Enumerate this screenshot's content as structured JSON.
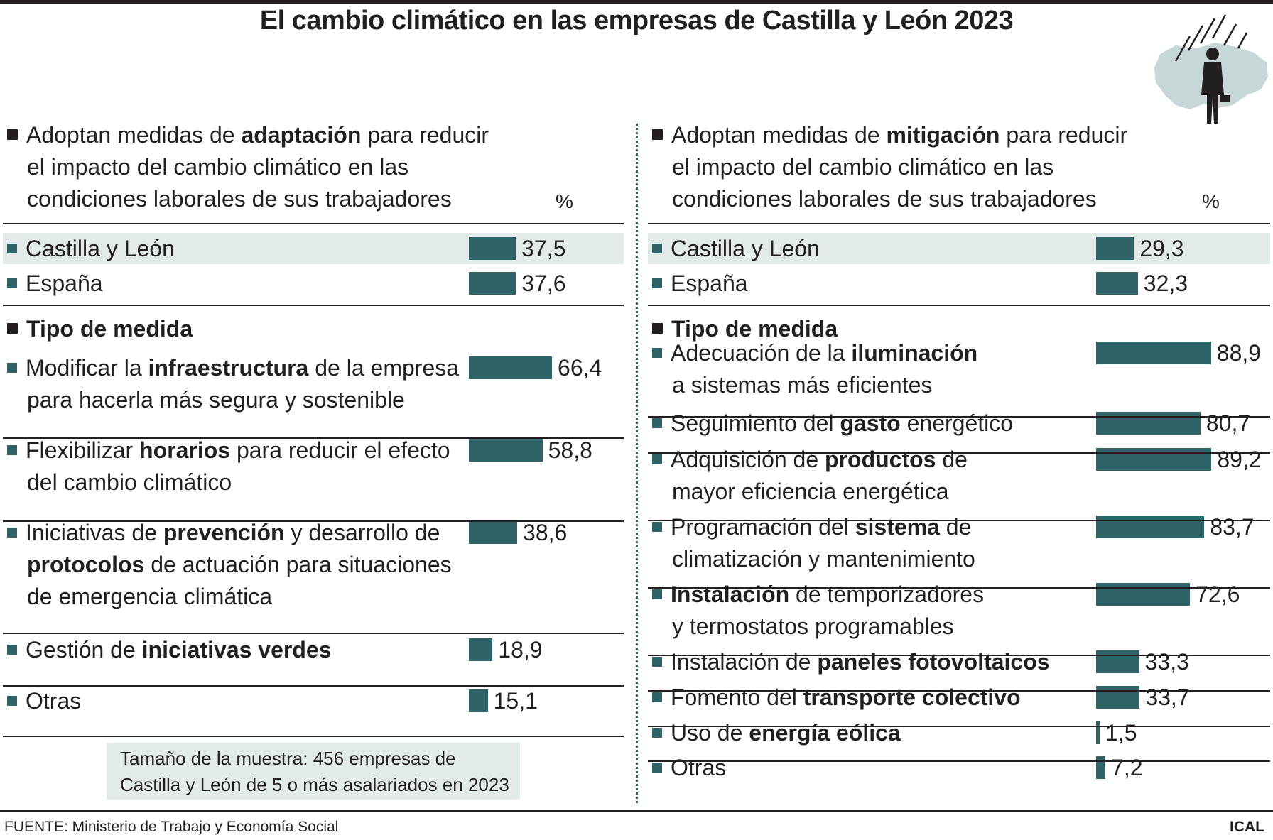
{
  "title": "El cambio climático en las empresas de Castilla y León 2023",
  "colors": {
    "bar": "#2e6468",
    "highlight": "#e2eaea",
    "text": "#231f20"
  },
  "left": {
    "heading_lines": [
      [
        {
          "t": "Adoptan medidas de "
        },
        {
          "t": "adaptación",
          "b": true
        },
        {
          "t": " para reducir"
        }
      ],
      [
        {
          "t": "el impacto del cambio climático en las"
        }
      ],
      [
        {
          "t": "condiciones laborales de sus trabajadores"
        }
      ]
    ],
    "unit": "%",
    "tipo_label": "Tipo de medida"
  },
  "right": {
    "heading_lines": [
      [
        {
          "t": "Adoptan medidas de "
        },
        {
          "t": "mitigación",
          "b": true
        },
        {
          "t": " para reducir"
        }
      ],
      [
        {
          "t": "el impacto del cambio climático en las"
        }
      ],
      [
        {
          "t": "condiciones laborales de sus trabajadores"
        }
      ]
    ],
    "unit": "%",
    "tipo_label": "Tipo de medida"
  },
  "chart_data": [
    {
      "type": "bar",
      "orientation": "horizontal",
      "panel": "adaptación",
      "unit": "%",
      "summary": [
        {
          "label": "Castilla y León",
          "value": 37.5,
          "value_label": "37,5",
          "highlight": true
        },
        {
          "label": "España",
          "value": 37.6,
          "value_label": "37,6"
        }
      ],
      "measures": [
        {
          "lines": [
            [
              {
                "t": "Modificar la "
              },
              {
                "t": "infraestructura",
                "b": true
              },
              {
                "t": " de la empresa"
              }
            ],
            [
              {
                "t": "para hacerla más segura y sostenible"
              }
            ]
          ],
          "value": 66.4,
          "value_label": "66,4"
        },
        {
          "lines": [
            [
              {
                "t": "Flexibilizar "
              },
              {
                "t": "horarios",
                "b": true
              },
              {
                "t": " para reducir el efecto"
              }
            ],
            [
              {
                "t": "del cambio climático"
              }
            ]
          ],
          "value": 58.8,
          "value_label": "58,8"
        },
        {
          "lines": [
            [
              {
                "t": "Iniciativas de "
              },
              {
                "t": "prevención",
                "b": true
              },
              {
                "t": " y desarrollo de"
              }
            ],
            [
              {
                "t": "protocolos",
                "b": true
              },
              {
                "t": " de actuación para situaciones"
              }
            ],
            [
              {
                "t": "de emergencia climática"
              }
            ]
          ],
          "value": 38.6,
          "value_label": "38,6"
        },
        {
          "lines": [
            [
              {
                "t": "Gestión de "
              },
              {
                "t": "iniciativas verdes",
                "b": true
              }
            ]
          ],
          "value": 18.9,
          "value_label": "18,9"
        },
        {
          "lines": [
            [
              {
                "t": "Otras"
              }
            ]
          ],
          "value": 15.1,
          "value_label": "15,1"
        }
      ]
    },
    {
      "type": "bar",
      "orientation": "horizontal",
      "panel": "mitigación",
      "unit": "%",
      "summary": [
        {
          "label": "Castilla y León",
          "value": 29.3,
          "value_label": "29,3",
          "highlight": true
        },
        {
          "label": "España",
          "value": 32.3,
          "value_label": "32,3"
        }
      ],
      "measures": [
        {
          "lines": [
            [
              {
                "t": "Adecuación de la "
              },
              {
                "t": "iluminación",
                "b": true
              }
            ],
            [
              {
                "t": "a sistemas más eficientes"
              }
            ]
          ],
          "value": 88.9,
          "value_label": "88,9"
        },
        {
          "lines": [
            [
              {
                "t": "Seguimiento del "
              },
              {
                "t": "gasto",
                "b": true
              },
              {
                "t": " energético"
              }
            ]
          ],
          "value": 80.7,
          "value_label": "80,7"
        },
        {
          "lines": [
            [
              {
                "t": "Adquisición de "
              },
              {
                "t": "productos",
                "b": true
              },
              {
                "t": " de"
              }
            ],
            [
              {
                "t": "mayor eficiencia energética"
              }
            ]
          ],
          "value": 89.2,
          "value_label": "89,2"
        },
        {
          "lines": [
            [
              {
                "t": "Programación del "
              },
              {
                "t": "sistema",
                "b": true
              },
              {
                "t": " de"
              }
            ],
            [
              {
                "t": "climatización y mantenimiento"
              }
            ]
          ],
          "value": 83.7,
          "value_label": "83,7"
        },
        {
          "lines": [
            [
              {
                "t": "Instalación",
                "b": true
              },
              {
                "t": " de temporizadores"
              }
            ],
            [
              {
                "t": "y termostatos programables"
              }
            ]
          ],
          "value": 72.6,
          "value_label": "72,6"
        },
        {
          "lines": [
            [
              {
                "t": "Instalación de "
              },
              {
                "t": "paneles fotovoltaicos",
                "b": true
              }
            ]
          ],
          "value": 33.3,
          "value_label": "33,3"
        },
        {
          "lines": [
            [
              {
                "t": "Fomento del "
              },
              {
                "t": "transporte colectivo",
                "b": true
              }
            ]
          ],
          "value": 33.7,
          "value_label": "33,7"
        },
        {
          "lines": [
            [
              {
                "t": "Uso de "
              },
              {
                "t": "energía eólica",
                "b": true
              }
            ]
          ],
          "value": 1.5,
          "value_label": "1,5"
        },
        {
          "lines": [
            [
              {
                "t": "Otras"
              }
            ]
          ],
          "value": 7.2,
          "value_label": "7,2"
        }
      ]
    }
  ],
  "note_lines": [
    "Tamaño de la muestra: 456 empresas de",
    "Castilla y León de 5 o más asalariados en 2023"
  ],
  "source": "FUENTE: Ministerio de Trabajo y Economía Social",
  "credit": "ICAL"
}
